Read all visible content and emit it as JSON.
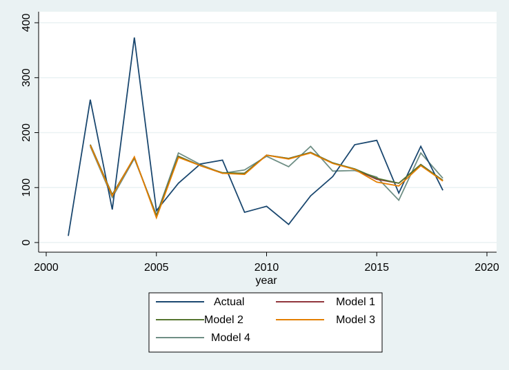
{
  "chart_data": {
    "type": "line",
    "xlabel": "year",
    "ylabel": "",
    "xlim": [
      2000,
      2020
    ],
    "ylim": [
      0,
      400
    ],
    "xticks": [
      2000,
      2005,
      2010,
      2015,
      2020
    ],
    "yticks": [
      0,
      100,
      200,
      300,
      400
    ],
    "grid": "horizontal",
    "legend_position": "bottom",
    "x": [
      2001,
      2002,
      2003,
      2004,
      2005,
      2006,
      2007,
      2008,
      2009,
      2010,
      2011,
      2012,
      2013,
      2014,
      2015,
      2016,
      2017,
      2018
    ],
    "series": [
      {
        "name": "Actual",
        "color": "#1a476f",
        "values": [
          12,
          260,
          60,
          373,
          58,
          108,
          143,
          150,
          55,
          66,
          33,
          85,
          120,
          178,
          186,
          90,
          175,
          95
        ]
      },
      {
        "name": "Model 1",
        "color": "#90353b",
        "values": [
          null,
          178,
          87,
          155,
          48,
          157,
          140,
          126,
          126,
          159,
          153,
          164,
          145,
          133,
          115,
          108,
          142,
          113
        ]
      },
      {
        "name": "Model 2",
        "color": "#55752f",
        "values": [
          null,
          178,
          87,
          155,
          48,
          157,
          140,
          127,
          126,
          159,
          153,
          164,
          145,
          134,
          117,
          108,
          142,
          113
        ]
      },
      {
        "name": "Model 3",
        "color": "#e37e00",
        "values": [
          null,
          177,
          85,
          156,
          45,
          155,
          140,
          126,
          124,
          159,
          152,
          163,
          144,
          133,
          110,
          103,
          140,
          112
        ]
      },
      {
        "name": "Model 4",
        "color": "#6e8e84",
        "values": [
          null,
          175,
          82,
          153,
          50,
          163,
          142,
          126,
          132,
          157,
          138,
          175,
          130,
          131,
          119,
          77,
          163,
          117
        ]
      }
    ]
  }
}
